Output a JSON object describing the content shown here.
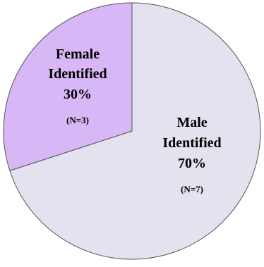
{
  "chart_data": {
    "type": "pie",
    "slices": [
      {
        "line1": "Male",
        "line2": "Identified",
        "percent_label": "70%",
        "n_label": "(N=7)",
        "value": 70,
        "color": "#e3e2ee"
      },
      {
        "line1": "Female",
        "line2": "Identified",
        "percent_label": "30%",
        "n_label": "(N=3)",
        "value": 30,
        "color": "#d7b7f5"
      }
    ],
    "start_angle_deg": 0,
    "direction": "clockwise",
    "stroke_color": "#555555"
  }
}
